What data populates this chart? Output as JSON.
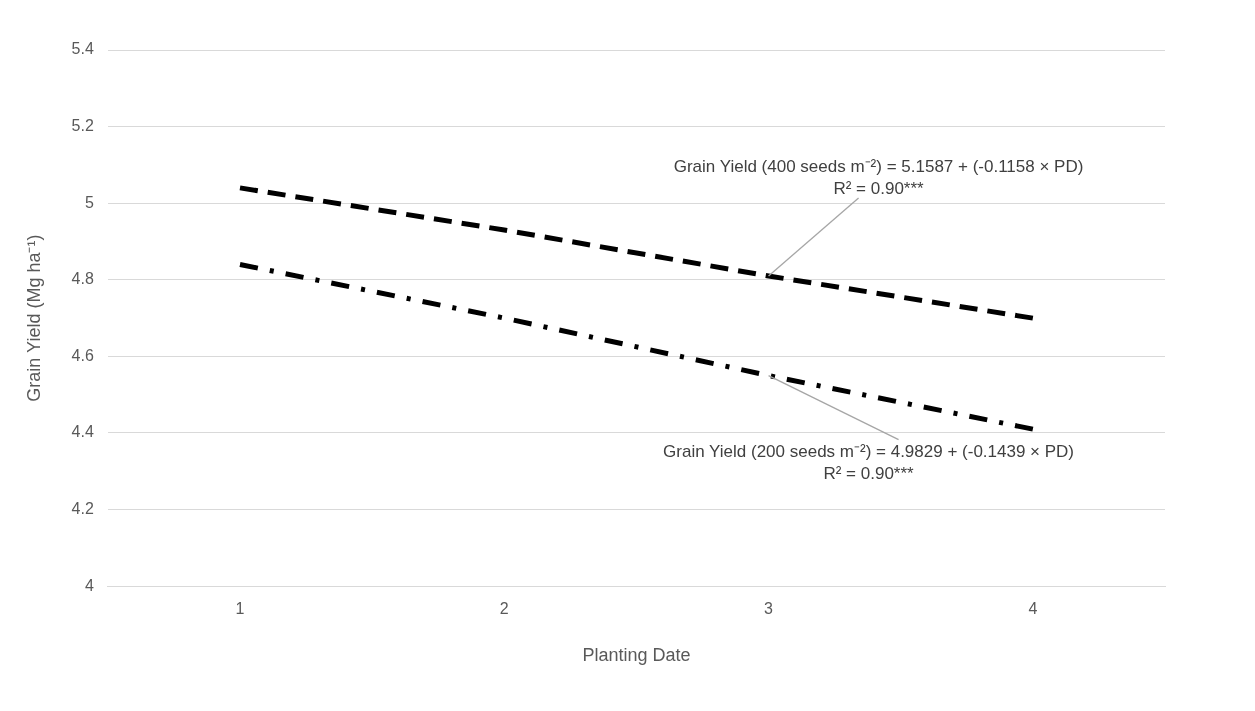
{
  "chart_data": {
    "type": "line",
    "xlabel": "Planting Date",
    "ylabel": "Grain Yield (Mg ha⁻¹)",
    "categories": [
      "1",
      "2",
      "3",
      "4"
    ],
    "series": [
      {
        "color": "#000000",
        "line_style": "dashed",
        "values": [
          5.04,
          4.93,
          4.81,
          4.7
        ]
      },
      {
        "color": "#000000",
        "line_style": "dashdot",
        "values": [
          4.84,
          4.7,
          4.55,
          4.41
        ]
      }
    ],
    "ylim": [
      4,
      5.4
    ],
    "yticks": [
      4,
      4.2,
      4.4,
      4.6,
      4.8,
      5,
      5.2,
      5.4
    ],
    "grid": "y",
    "legend": false,
    "marker": "none",
    "annotations": [
      {
        "text": "Grain Yield (400 seeds m⁻²) = 5.1587 + (-0.1158 × PD)\nR² = 0.90***",
        "x": "3",
        "y": 4.81
      },
      {
        "text": "Grain Yield (200 seeds m⁻²) = 4.9829 + (-0.1439 × PD)\nR² = 0.90***",
        "x": "3",
        "y": 4.55
      }
    ]
  }
}
